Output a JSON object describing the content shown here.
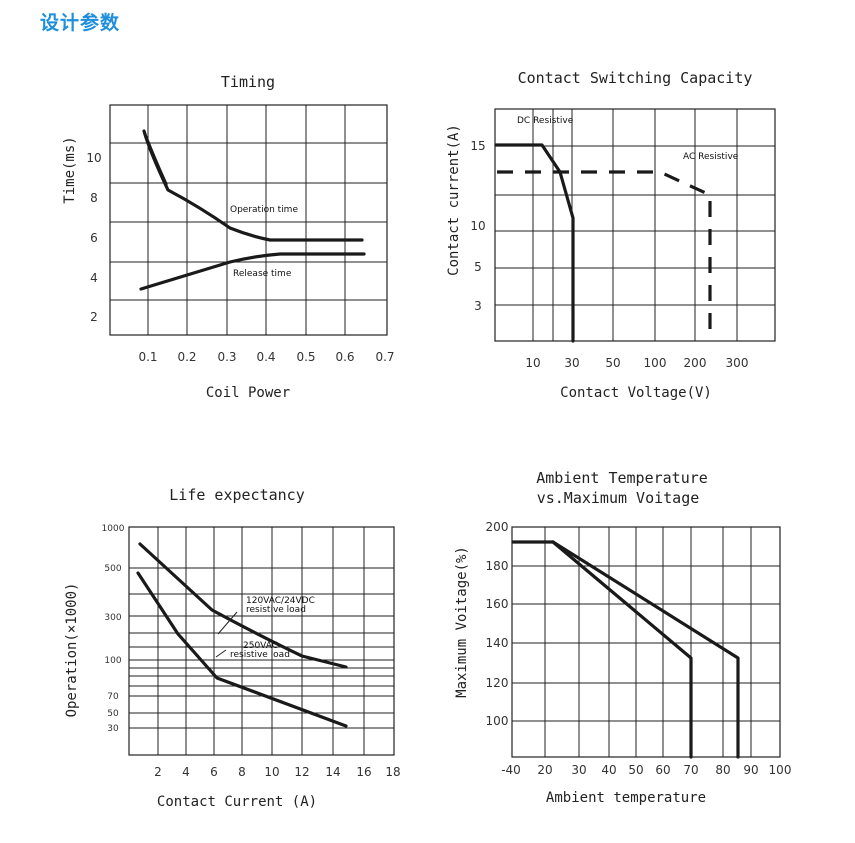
{
  "header": {
    "title": "设计参数"
  },
  "chart_data": [
    {
      "id": "timing",
      "type": "line",
      "title": "Timing",
      "xlabel": "Coil Power",
      "ylabel": "Time(ms)",
      "xticks": [
        "0.1",
        "0.2",
        "0.3",
        "0.4",
        "0.5",
        "0.6",
        "0.7"
      ],
      "yticks": [
        "2",
        "4",
        "6",
        "8",
        "10"
      ],
      "xlim": [
        0.05,
        0.7
      ],
      "ylim": [
        1,
        12
      ],
      "grid": true,
      "series": [
        {
          "name": "Operation time",
          "x": [
            0.08,
            0.15,
            0.3,
            0.42,
            0.64
          ],
          "y": [
            11.3,
            8.3,
            6.4,
            5.9,
            5.9
          ]
        },
        {
          "name": "Release time",
          "x": [
            0.08,
            0.2,
            0.3,
            0.43,
            0.64
          ],
          "y": [
            3.4,
            4.1,
            4.7,
            5.1,
            5.1
          ]
        }
      ],
      "annotations": [
        "Operation time",
        "Release time"
      ]
    },
    {
      "id": "switching",
      "type": "line",
      "title": "Contact Switching Capacity",
      "xlabel": "Contact Voltage(V)",
      "ylabel": "Contact current(A)",
      "xticks": [
        "10",
        "30",
        "50",
        "100",
        "200",
        "300"
      ],
      "yticks": [
        "3",
        "5",
        "10",
        "15"
      ],
      "grid": true,
      "series": [
        {
          "name": "DC Resistive",
          "x": [
            "10",
            "20",
            "30",
            "30"
          ],
          "y": [
            15,
            15,
            10,
            0
          ]
        },
        {
          "name": "AC Resistive",
          "x": [
            "10",
            "100",
            "250",
            "250"
          ],
          "y": [
            12,
            12,
            11.5,
            0
          ]
        }
      ],
      "annotations": [
        "DC Resistive",
        "AC Resistive"
      ]
    },
    {
      "id": "life",
      "type": "line",
      "title": "Life expectancy",
      "xlabel": "Contact Current (A)",
      "ylabel": "Operation(×1000)",
      "xticks": [
        "2",
        "4",
        "6",
        "8",
        "10",
        "12",
        "14",
        "16",
        "18"
      ],
      "yticks": [
        "30",
        "50",
        "70",
        "100",
        "300",
        "500",
        "1000"
      ],
      "xlim": [
        0,
        18
      ],
      "grid": true,
      "series": [
        {
          "name": "120VAC/24VDC resistive load",
          "x": [
            0.5,
            6,
            12,
            15
          ],
          "y": [
            700,
            320,
            105,
            90
          ]
        },
        {
          "name": "250VAC resistive load",
          "x": [
            0.5,
            3,
            6.5,
            15
          ],
          "y": [
            470,
            190,
            60,
            30
          ]
        }
      ],
      "annotations": [
        "120VAC/24VDC",
        "resistive load",
        "250VAC",
        "resistive load"
      ]
    },
    {
      "id": "ambient",
      "type": "line",
      "title": [
        "Ambient Temperature",
        "vs.Maximum Voitage"
      ],
      "xlabel": "Ambient temperature",
      "ylabel": "Maximum Voitage(%)",
      "xticks": [
        "-40",
        "20",
        "30",
        "40",
        "50",
        "60",
        "70",
        "80",
        "90",
        "100"
      ],
      "yticks": [
        "100",
        "120",
        "140",
        "160",
        "180",
        "200"
      ],
      "xlim": [
        -40,
        100
      ],
      "ylim": [
        80,
        200
      ],
      "grid": true,
      "series": [
        {
          "x": [
            -40,
            23,
            85,
            85
          ],
          "y": [
            192,
            192,
            131,
            80
          ]
        },
        {
          "x": [
            23,
            69,
            69
          ],
          "y": [
            192,
            131,
            80
          ]
        }
      ]
    }
  ]
}
